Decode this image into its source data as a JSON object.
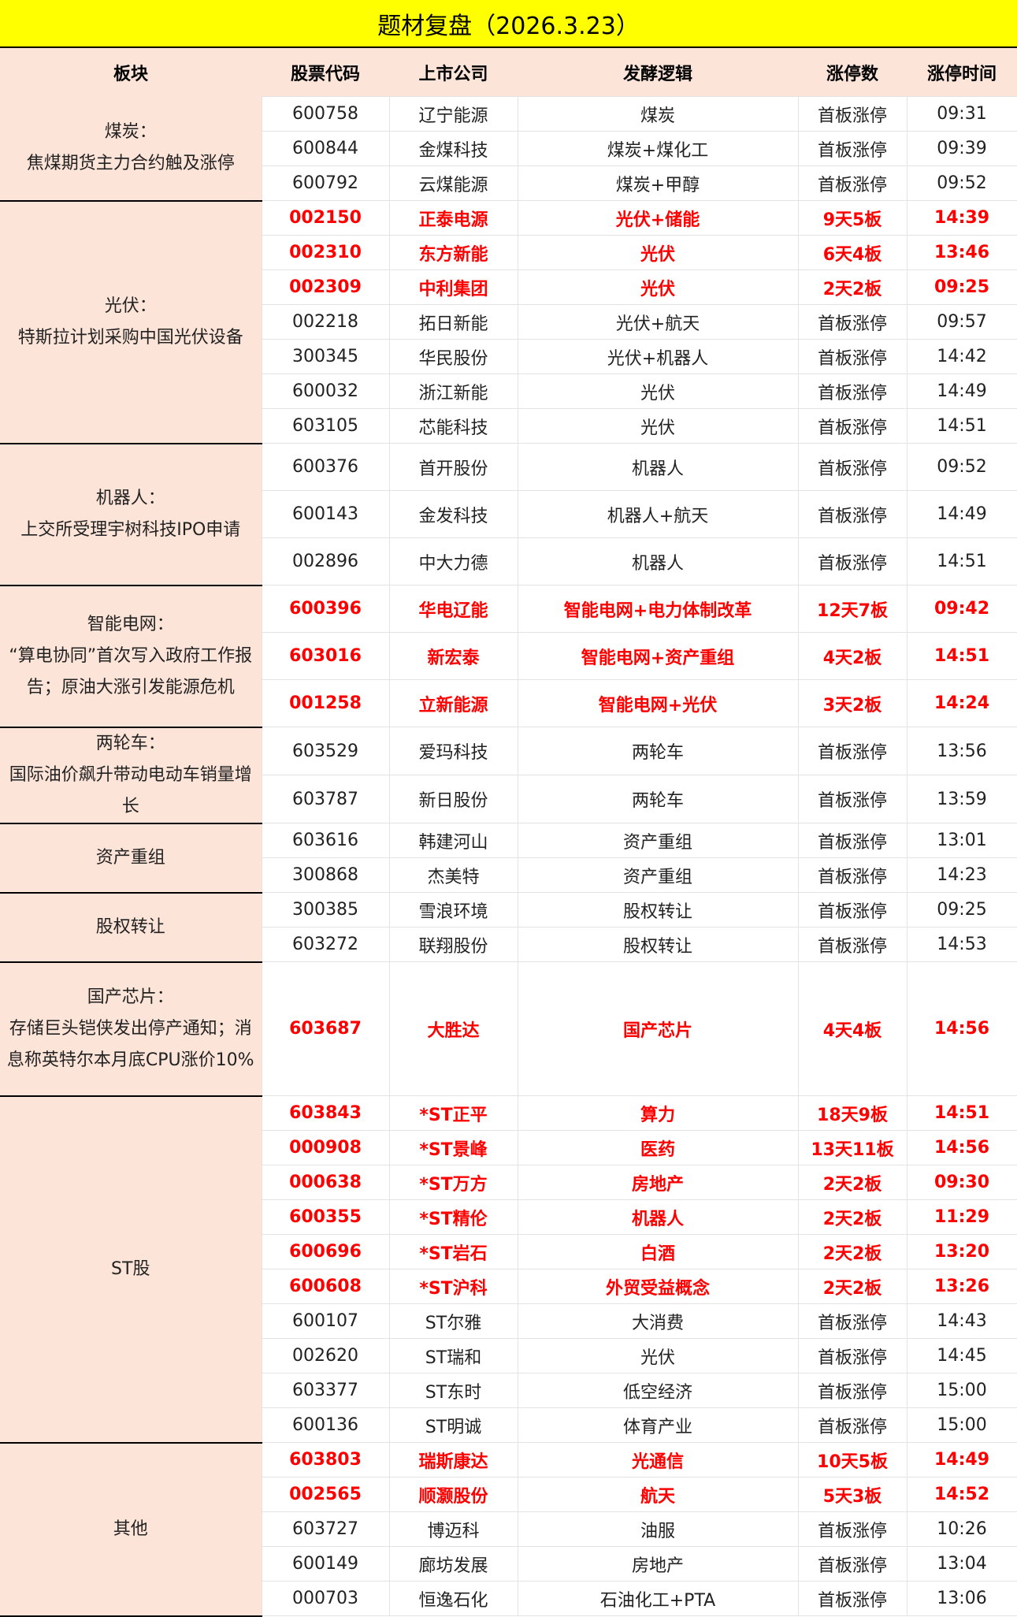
{
  "title": "题材复盘（2026.3.23）",
  "headers": [
    "板块",
    "股票代码",
    "上市公司",
    "发酵逻辑",
    "涨停数",
    "涨停时间"
  ],
  "colors": {
    "title_bg": "#ffff00",
    "sector_bg": "#fde4d8",
    "highlight": "#ff0000"
  },
  "groups": [
    {
      "sector": "煤炭：\n焦煤期货主力合约触及涨停",
      "rows": [
        {
          "code": "600758",
          "company": "辽宁能源",
          "logic": "煤炭",
          "count": "首板涨停",
          "time": "09:31",
          "highlight": false
        },
        {
          "code": "600844",
          "company": "金煤科技",
          "logic": "煤炭+煤化工",
          "count": "首板涨停",
          "time": "09:39",
          "highlight": false
        },
        {
          "code": "600792",
          "company": "云煤能源",
          "logic": "煤炭+甲醇",
          "count": "首板涨停",
          "time": "09:52",
          "highlight": false
        }
      ]
    },
    {
      "sector": "光伏：\n特斯拉计划采购中国光伏设备",
      "rows": [
        {
          "code": "002150",
          "company": "正泰电源",
          "logic": "光伏+储能",
          "count": "9天5板",
          "time": "14:39",
          "highlight": true
        },
        {
          "code": "002310",
          "company": "东方新能",
          "logic": "光伏",
          "count": "6天4板",
          "time": "13:46",
          "highlight": true
        },
        {
          "code": "002309",
          "company": "中利集团",
          "logic": "光伏",
          "count": "2天2板",
          "time": "09:25",
          "highlight": true
        },
        {
          "code": "002218",
          "company": "拓日新能",
          "logic": "光伏+航天",
          "count": "首板涨停",
          "time": "09:57",
          "highlight": false
        },
        {
          "code": "300345",
          "company": "华民股份",
          "logic": "光伏+机器人",
          "count": "首板涨停",
          "time": "14:42",
          "highlight": false
        },
        {
          "code": "600032",
          "company": "浙江新能",
          "logic": "光伏",
          "count": "首板涨停",
          "time": "14:49",
          "highlight": false
        },
        {
          "code": "603105",
          "company": "芯能科技",
          "logic": "光伏",
          "count": "首板涨停",
          "time": "14:51",
          "highlight": false
        }
      ]
    },
    {
      "sector": "机器人：\n上交所受理宇树科技IPO申请",
      "rows": [
        {
          "code": "600376",
          "company": "首开股份",
          "logic": "机器人",
          "count": "首板涨停",
          "time": "09:52",
          "highlight": false
        },
        {
          "code": "600143",
          "company": "金发科技",
          "logic": "机器人+航天",
          "count": "首板涨停",
          "time": "14:49",
          "highlight": false
        },
        {
          "code": "002896",
          "company": "中大力德",
          "logic": "机器人",
          "count": "首板涨停",
          "time": "14:51",
          "highlight": false
        }
      ]
    },
    {
      "sector": "智能电网：\n“算电协同”首次写入政府工作报告；原油大涨引发能源危机",
      "rows": [
        {
          "code": "600396",
          "company": "华电辽能",
          "logic": "智能电网+电力体制改革",
          "count": "12天7板",
          "time": "09:42",
          "highlight": true
        },
        {
          "code": "603016",
          "company": "新宏泰",
          "logic": "智能电网+资产重组",
          "count": "4天2板",
          "time": "14:51",
          "highlight": true
        },
        {
          "code": "001258",
          "company": "立新能源",
          "logic": "智能电网+光伏",
          "count": "3天2板",
          "time": "14:24",
          "highlight": true
        }
      ]
    },
    {
      "sector": "两轮车：\n国际油价飙升带动电动车销量增长",
      "rows": [
        {
          "code": "603529",
          "company": "爱玛科技",
          "logic": "两轮车",
          "count": "首板涨停",
          "time": "13:56",
          "highlight": false
        },
        {
          "code": "603787",
          "company": "新日股份",
          "logic": "两轮车",
          "count": "首板涨停",
          "time": "13:59",
          "highlight": false
        }
      ]
    },
    {
      "sector": "资产重组",
      "rows": [
        {
          "code": "603616",
          "company": "韩建河山",
          "logic": "资产重组",
          "count": "首板涨停",
          "time": "13:01",
          "highlight": false
        },
        {
          "code": "300868",
          "company": "杰美特",
          "logic": "资产重组",
          "count": "首板涨停",
          "time": "14:23",
          "highlight": false
        }
      ]
    },
    {
      "sector": "股权转让",
      "rows": [
        {
          "code": "300385",
          "company": "雪浪环境",
          "logic": "股权转让",
          "count": "首板涨停",
          "time": "09:25",
          "highlight": false
        },
        {
          "code": "603272",
          "company": "联翔股份",
          "logic": "股权转让",
          "count": "首板涨停",
          "time": "14:53",
          "highlight": false
        }
      ]
    },
    {
      "sector": "国产芯片：\n存储巨头铠侠发出停产通知；消息称英特尔本月底CPU涨价10%",
      "rows": [
        {
          "code": "603687",
          "company": "大胜达",
          "logic": "国产芯片",
          "count": "4天4板",
          "time": "14:56",
          "highlight": true
        }
      ]
    },
    {
      "sector": "ST股",
      "rows": [
        {
          "code": "603843",
          "company": "*ST正平",
          "logic": "算力",
          "count": "18天9板",
          "time": "14:51",
          "highlight": true
        },
        {
          "code": "000908",
          "company": "*ST景峰",
          "logic": "医药",
          "count": "13天11板",
          "time": "14:56",
          "highlight": true
        },
        {
          "code": "000638",
          "company": "*ST万方",
          "logic": "房地产",
          "count": "2天2板",
          "time": "09:30",
          "highlight": true
        },
        {
          "code": "600355",
          "company": "*ST精伦",
          "logic": "机器人",
          "count": "2天2板",
          "time": "11:29",
          "highlight": true
        },
        {
          "code": "600696",
          "company": "*ST岩石",
          "logic": "白酒",
          "count": "2天2板",
          "time": "13:20",
          "highlight": true
        },
        {
          "code": "600608",
          "company": "*ST沪科",
          "logic": "外贸受益概念",
          "count": "2天2板",
          "time": "13:26",
          "highlight": true
        },
        {
          "code": "600107",
          "company": "ST尔雅",
          "logic": "大消费",
          "count": "首板涨停",
          "time": "14:43",
          "highlight": false
        },
        {
          "code": "002620",
          "company": "ST瑞和",
          "logic": "光伏",
          "count": "首板涨停",
          "time": "14:45",
          "highlight": false
        },
        {
          "code": "603377",
          "company": "ST东时",
          "logic": "低空经济",
          "count": "首板涨停",
          "time": "15:00",
          "highlight": false
        },
        {
          "code": "600136",
          "company": "ST明诚",
          "logic": "体育产业",
          "count": "首板涨停",
          "time": "15:00",
          "highlight": false
        }
      ]
    },
    {
      "sector": "其他",
      "rows": [
        {
          "code": "603803",
          "company": "瑞斯康达",
          "logic": "光通信",
          "count": "10天5板",
          "time": "14:49",
          "highlight": true
        },
        {
          "code": "002565",
          "company": "顺灏股份",
          "logic": "航天",
          "count": "5天3板",
          "time": "14:52",
          "highlight": true
        },
        {
          "code": "603727",
          "company": "博迈科",
          "logic": "油服",
          "count": "首板涨停",
          "time": "10:26",
          "highlight": false
        },
        {
          "code": "600149",
          "company": "廊坊发展",
          "logic": "房地产",
          "count": "首板涨停",
          "time": "13:04",
          "highlight": false
        },
        {
          "code": "000703",
          "company": "恒逸石化",
          "logic": "石油化工+PTA",
          "count": "首板涨停",
          "time": "13:06",
          "highlight": false
        }
      ]
    }
  ]
}
